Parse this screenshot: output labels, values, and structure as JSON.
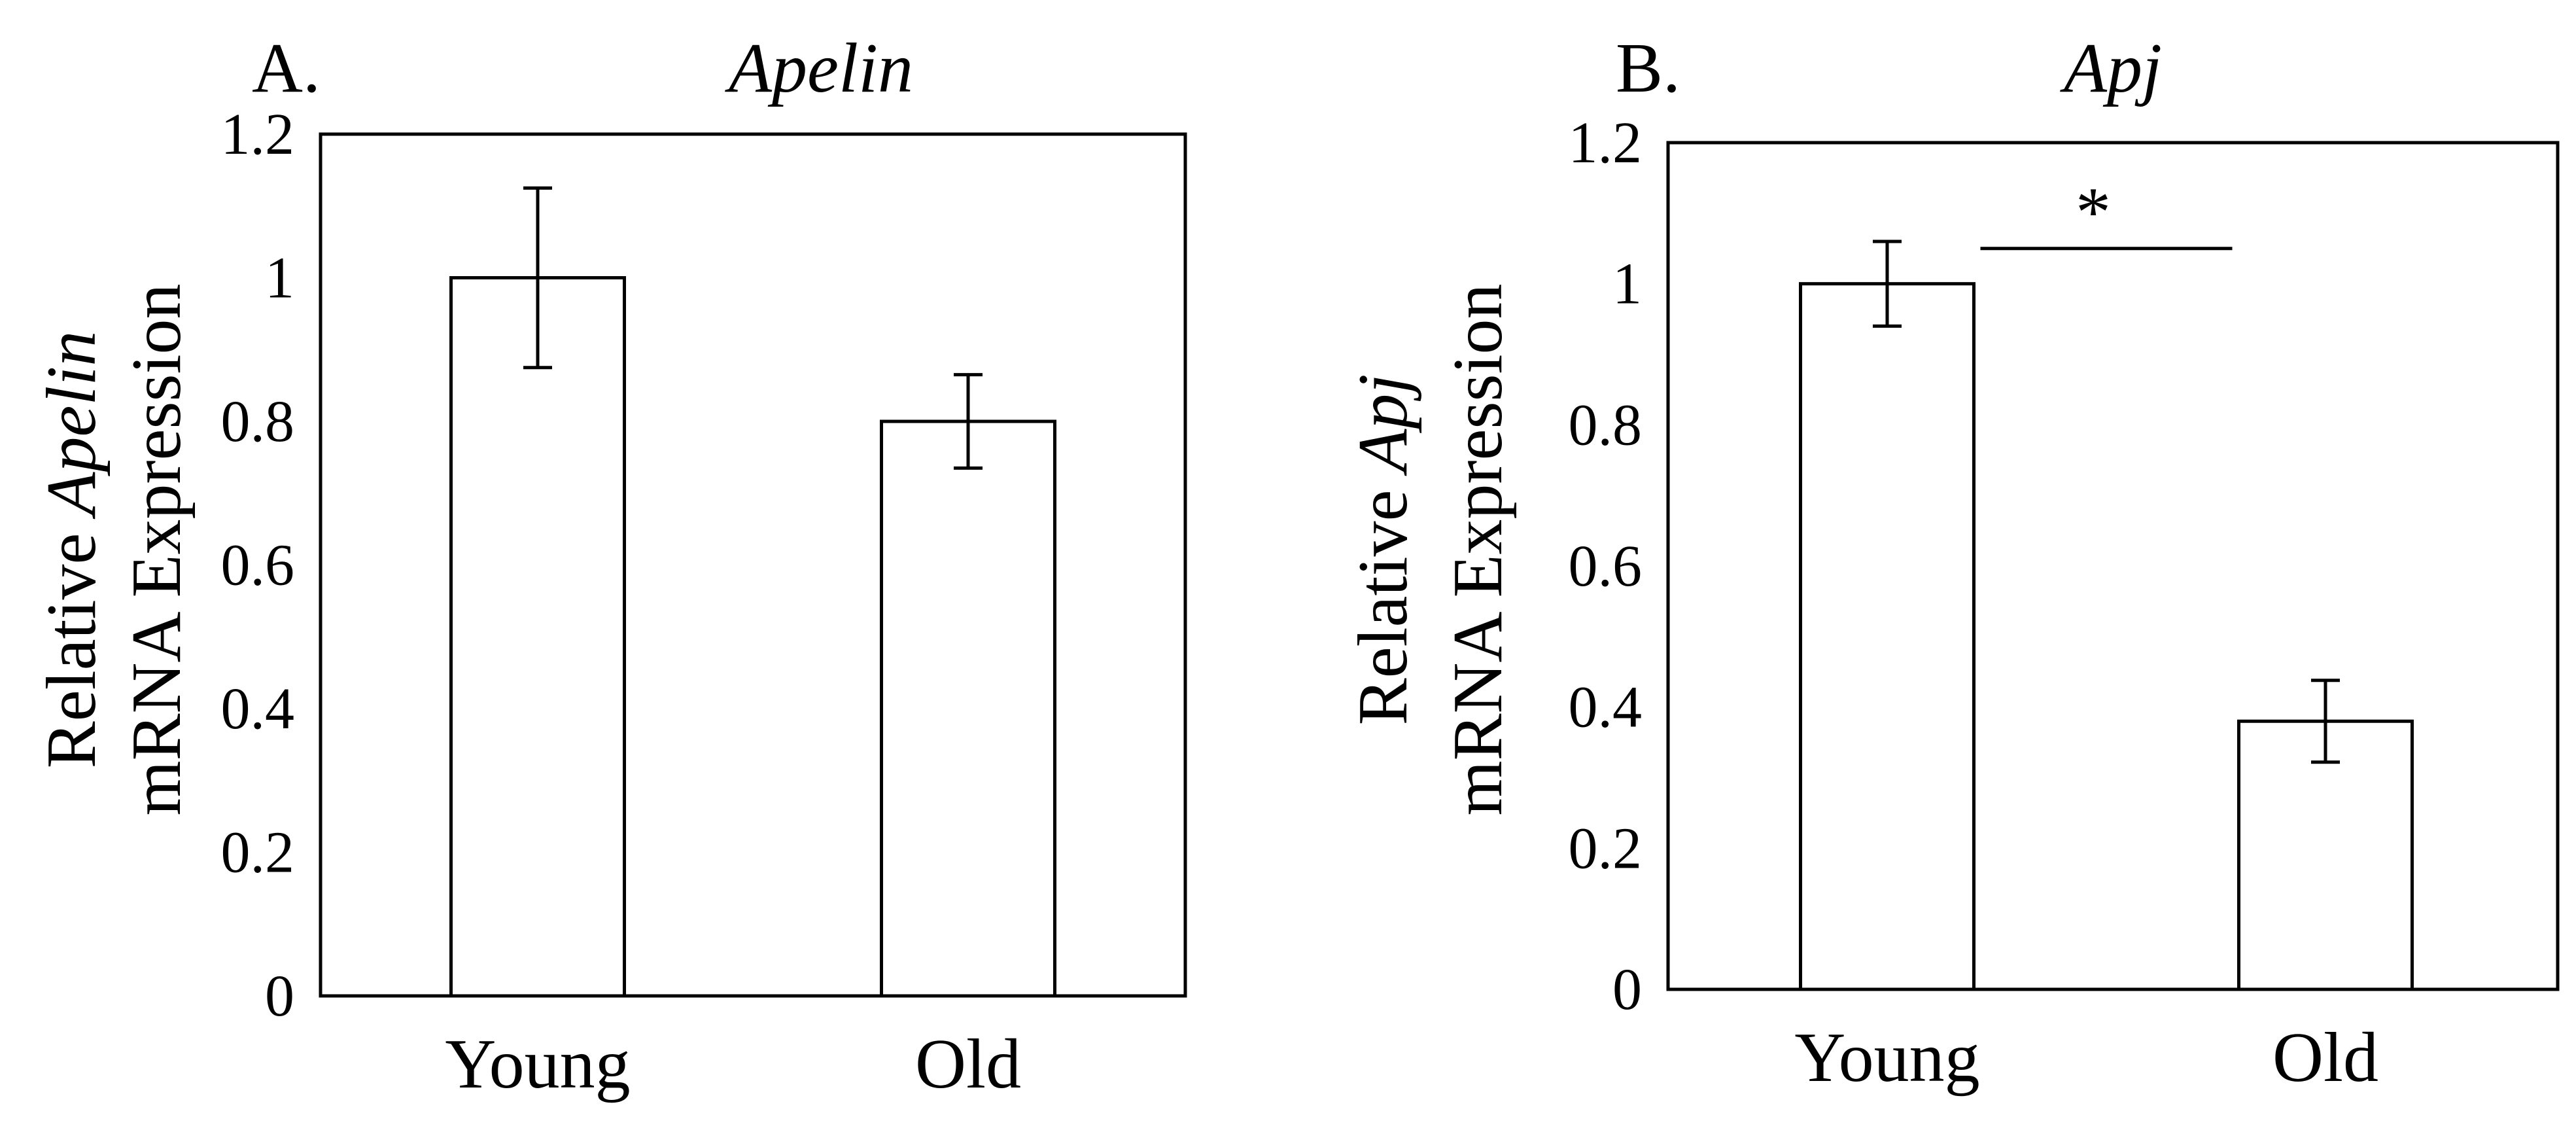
{
  "chart_data": [
    {
      "type": "bar",
      "panel_label": "A.",
      "title": "Apelin",
      "ylabel": {
        "line1_prefix": "Relative ",
        "line1_gene": "Apelin",
        "line2": "mRNA Expression"
      },
      "categories": [
        "Young",
        "Old"
      ],
      "values": [
        1.0,
        0.8
      ],
      "errors": [
        0.125,
        0.065
      ],
      "ylim": [
        0,
        1.2
      ],
      "yticks": [
        "0",
        "0.2",
        "0.4",
        "0.6",
        "0.8",
        "1",
        "1.2"
      ],
      "grid": false,
      "significance": null
    },
    {
      "type": "bar",
      "panel_label": "B.",
      "title": "Apj",
      "ylabel": {
        "line1_prefix": "Relative ",
        "line1_gene": "Apj",
        "line2": "mRNA Expression"
      },
      "categories": [
        "Young",
        "Old"
      ],
      "values": [
        1.0,
        0.38
      ],
      "errors": [
        0.06,
        0.058
      ],
      "ylim": [
        0,
        1.2
      ],
      "yticks": [
        "0",
        "0.2",
        "0.4",
        "0.6",
        "0.8",
        "1",
        "1.2"
      ],
      "grid": false,
      "significance": {
        "marker": "*",
        "between": [
          "Young",
          "Old"
        ]
      }
    }
  ]
}
